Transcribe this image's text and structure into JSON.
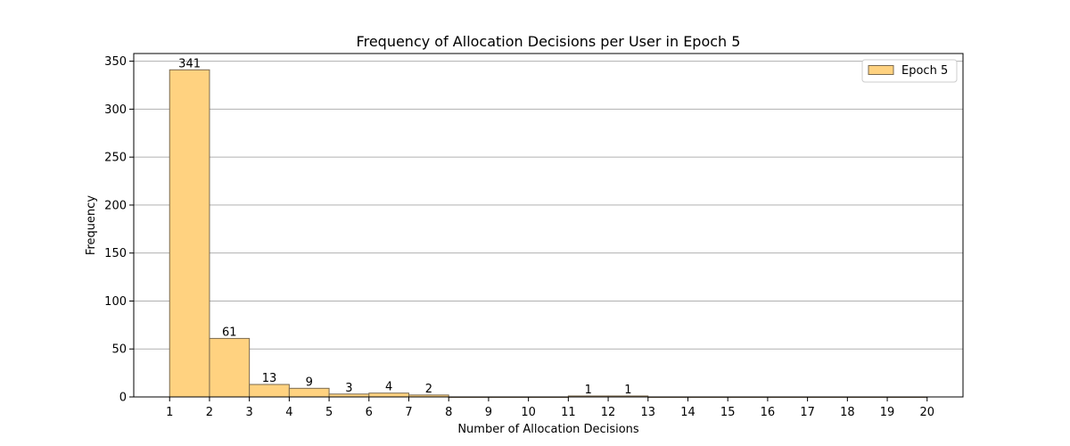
{
  "chart_data": {
    "type": "bar",
    "title": "Frequency of Allocation Decisions per User in Epoch 5",
    "xlabel": "Number of Allocation Decisions",
    "ylabel": "Frequency",
    "bins": [
      [
        1,
        2
      ],
      [
        2,
        3
      ],
      [
        3,
        4
      ],
      [
        4,
        5
      ],
      [
        5,
        6
      ],
      [
        6,
        7
      ],
      [
        7,
        8
      ],
      [
        8,
        9
      ],
      [
        9,
        10
      ],
      [
        10,
        11
      ],
      [
        11,
        12
      ],
      [
        12,
        13
      ],
      [
        13,
        14
      ],
      [
        14,
        15
      ],
      [
        15,
        16
      ],
      [
        16,
        17
      ],
      [
        17,
        18
      ],
      [
        18,
        19
      ],
      [
        19,
        20
      ]
    ],
    "values": [
      341,
      61,
      13,
      9,
      3,
      4,
      2,
      0,
      0,
      0,
      1,
      1,
      0,
      0,
      0,
      0,
      0,
      0,
      0
    ],
    "series": [
      {
        "name": "Epoch 5"
      }
    ],
    "xlim": [
      0.1,
      20.9
    ],
    "ylim": [
      0,
      358
    ],
    "xticks": [
      1,
      2,
      3,
      4,
      5,
      6,
      7,
      8,
      9,
      10,
      11,
      12,
      13,
      14,
      15,
      16,
      17,
      18,
      19,
      20
    ],
    "yticks": [
      0,
      50,
      100,
      150,
      200,
      250,
      300,
      350
    ],
    "grid": "y",
    "legend": "top-right",
    "colors": {
      "bar_fill": "#ffd280",
      "bar_edge": "#7a6a50"
    }
  }
}
